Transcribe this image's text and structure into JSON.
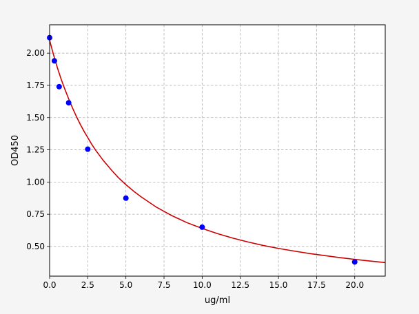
{
  "chart_data": {
    "type": "scatter",
    "title": "",
    "xlabel": "ug/ml",
    "ylabel": "OD450",
    "xlim": [
      0,
      22
    ],
    "ylim": [
      0.27,
      2.22
    ],
    "x_ticks": [
      0.0,
      2.5,
      5.0,
      7.5,
      10.0,
      12.5,
      15.0,
      17.5,
      20.0
    ],
    "x_tick_labels": [
      "0.0",
      "2.5",
      "5.0",
      "7.5",
      "10.0",
      "12.5",
      "15.0",
      "17.5",
      "20.0"
    ],
    "y_ticks": [
      0.5,
      0.75,
      1.0,
      1.25,
      1.5,
      1.75,
      2.0
    ],
    "y_tick_labels": [
      "0.50",
      "0.75",
      "1.00",
      "1.25",
      "1.50",
      "1.75",
      "2.00"
    ],
    "grid": true,
    "series": [
      {
        "type": "scatter",
        "color": "#0000ff",
        "x": [
          0,
          0.3125,
          0.625,
          1.25,
          2.5,
          5,
          10,
          20
        ],
        "y": [
          2.12,
          1.94,
          1.74,
          1.615,
          1.255,
          0.875,
          0.65,
          0.38
        ]
      },
      {
        "type": "line",
        "color": "#cc0000",
        "x": [
          0,
          0.25,
          0.5,
          0.75,
          1,
          1.25,
          1.5,
          1.75,
          2,
          2.25,
          2.5,
          2.75,
          3,
          3.5,
          4,
          4.5,
          5,
          5.5,
          6,
          7,
          8,
          9,
          10,
          11,
          12,
          13,
          14,
          15,
          16,
          17,
          18,
          19,
          20,
          21,
          22
        ],
        "y": [
          2.1,
          1.99,
          1.89,
          1.8,
          1.72,
          1.645,
          1.575,
          1.51,
          1.45,
          1.395,
          1.345,
          1.295,
          1.25,
          1.17,
          1.1,
          1.035,
          0.98,
          0.93,
          0.885,
          0.805,
          0.74,
          0.685,
          0.64,
          0.6,
          0.565,
          0.535,
          0.508,
          0.485,
          0.465,
          0.446,
          0.43,
          0.414,
          0.4,
          0.387,
          0.375
        ]
      }
    ]
  }
}
